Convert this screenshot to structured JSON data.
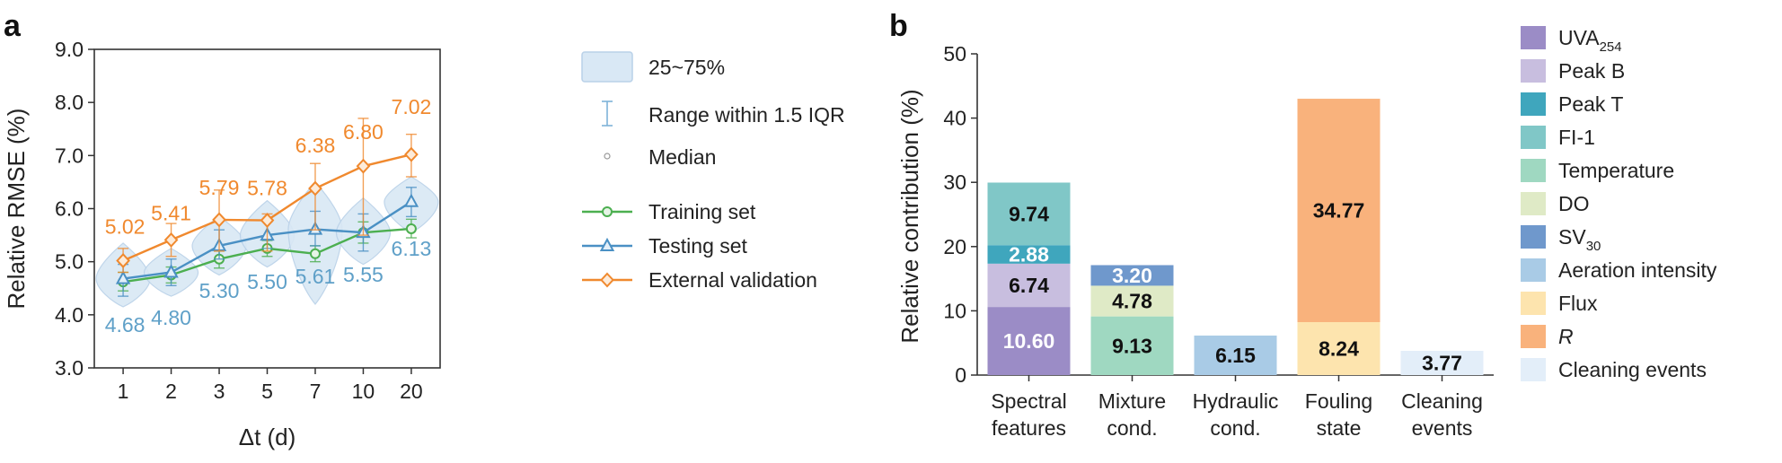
{
  "colors": {
    "training": "#4caf50",
    "testing": "#4a90c4",
    "external": "#f0892e",
    "violin_fill": "#d9e8f5",
    "violin_stroke": "#b9d1e8",
    "test_label": "#5fa0c8",
    "axis": "#333333"
  },
  "chart_data": [
    {
      "panel": "a",
      "type": "line",
      "xlabel": "Δt (d)",
      "ylabel": "Relative RMSE (%)",
      "categories": [
        "1",
        "2",
        "3",
        "5",
        "7",
        "10",
        "20"
      ],
      "ylim": [
        3.0,
        9.0
      ],
      "yticks": [
        "3.0",
        "4.0",
        "5.0",
        "6.0",
        "7.0",
        "8.0",
        "9.0"
      ],
      "grid": false,
      "series": [
        {
          "name": "Training set",
          "marker": "circle",
          "color": "#4caf50",
          "values": [
            4.62,
            4.75,
            5.05,
            5.25,
            5.15,
            5.55,
            5.62
          ],
          "err_low": [
            4.45,
            4.6,
            4.88,
            5.1,
            5.0,
            5.35,
            5.45
          ],
          "err_high": [
            4.8,
            4.9,
            5.2,
            5.4,
            5.3,
            5.75,
            5.8
          ]
        },
        {
          "name": "Testing set",
          "marker": "triangle",
          "color": "#4a90c4",
          "values": [
            4.68,
            4.8,
            5.3,
            5.5,
            5.61,
            5.55,
            6.13
          ],
          "err_low": [
            4.35,
            4.55,
            5.05,
            5.25,
            5.3,
            5.2,
            5.85
          ],
          "err_high": [
            4.95,
            5.05,
            5.6,
            5.75,
            5.95,
            5.9,
            6.4
          ]
        },
        {
          "name": "External validation",
          "marker": "diamond",
          "color": "#f0892e",
          "values": [
            5.02,
            5.41,
            5.79,
            5.78,
            6.38,
            6.8,
            7.02
          ],
          "err_low": [
            4.8,
            5.1,
            5.2,
            5.2,
            5.6,
            5.5,
            6.6
          ],
          "err_high": [
            5.25,
            5.72,
            6.35,
            5.9,
            6.85,
            7.7,
            7.4
          ]
        }
      ],
      "labels_external": [
        "5.02",
        "5.41",
        "5.79",
        "5.78",
        "6.38",
        "6.80",
        "7.02"
      ],
      "labels_testing": [
        "4.68",
        "4.80",
        "5.30",
        "5.50",
        "5.61",
        "5.55",
        "6.13"
      ],
      "violins": [
        {
          "min": 4.15,
          "max": 5.35,
          "center": 4.68
        },
        {
          "min": 4.35,
          "max": 5.25,
          "center": 4.8
        },
        {
          "min": 4.75,
          "max": 5.85,
          "center": 5.3
        },
        {
          "min": 4.9,
          "max": 6.15,
          "center": 5.5
        },
        {
          "min": 4.2,
          "max": 6.5,
          "center": 5.61
        },
        {
          "min": 4.95,
          "max": 6.2,
          "center": 5.55
        },
        {
          "min": 5.55,
          "max": 6.6,
          "center": 6.13
        }
      ],
      "legend": {
        "violin": "25~75%",
        "range": "Range within 1.5 IQR",
        "median": "Median",
        "training": "Training set",
        "testing": "Testing set",
        "external": "External validation"
      }
    },
    {
      "panel": "b",
      "type": "bar",
      "stacked": true,
      "ylabel": "Relative contribution (%)",
      "ylim": [
        0,
        50
      ],
      "yticks": [
        "0",
        "10",
        "20",
        "30",
        "40",
        "50"
      ],
      "categories": [
        [
          "Spectral",
          "features"
        ],
        [
          "Mixture",
          "cond."
        ],
        [
          "Hydraulic",
          "cond."
        ],
        [
          "Fouling",
          "state"
        ],
        [
          "Cleaning",
          "events"
        ]
      ],
      "series": [
        {
          "name": "UVA",
          "sub": "254",
          "italic": false,
          "color": "#9b8cc6",
          "values": [
            10.6,
            0,
            0,
            0,
            0
          ],
          "labels": [
            "10.60",
            "",
            "",
            "",
            ""
          ],
          "label_color": [
            "#ffffff",
            "",
            "",
            "",
            ""
          ]
        },
        {
          "name": "Peak B",
          "sub": "",
          "italic": false,
          "color": "#c8bedf",
          "values": [
            6.74,
            0,
            0,
            0,
            0
          ],
          "labels": [
            "6.74",
            "",
            "",
            "",
            ""
          ],
          "label_color": [
            "#111111",
            "",
            "",
            "",
            ""
          ]
        },
        {
          "name": "Peak T",
          "sub": "",
          "italic": false,
          "color": "#3fa6bd",
          "values": [
            2.88,
            0,
            0,
            0,
            0
          ],
          "labels": [
            "2.88",
            "",
            "",
            "",
            ""
          ],
          "label_color": [
            "#ffffff",
            "",
            "",
            "",
            ""
          ]
        },
        {
          "name": "FI-1",
          "sub": "",
          "italic": false,
          "color": "#80c7c7",
          "values": [
            9.74,
            0,
            0,
            0,
            0
          ],
          "labels": [
            "9.74",
            "",
            "",
            "",
            ""
          ],
          "label_color": [
            "#111111",
            "",
            "",
            "",
            ""
          ]
        },
        {
          "name": "Temperature",
          "sub": "",
          "italic": false,
          "color": "#9fd8c1",
          "values": [
            0,
            9.13,
            0,
            0,
            0
          ],
          "labels": [
            "",
            "9.13",
            "",
            "",
            ""
          ],
          "label_color": [
            "",
            "#111111",
            "",
            "",
            ""
          ]
        },
        {
          "name": "DO",
          "sub": "",
          "italic": false,
          "color": "#dfeac6",
          "values": [
            0,
            4.78,
            0,
            0,
            0
          ],
          "labels": [
            "",
            "4.78",
            "",
            "",
            ""
          ],
          "label_color": [
            "",
            "#111111",
            "",
            "",
            ""
          ]
        },
        {
          "name": "SV",
          "sub": "30",
          "italic": false,
          "color": "#6f98cc",
          "values": [
            0,
            3.2,
            0,
            0,
            0
          ],
          "labels": [
            "",
            "3.20",
            "",
            "",
            ""
          ],
          "label_color": [
            "",
            "#ffffff",
            "",
            "",
            ""
          ]
        },
        {
          "name": "Aeration intensity",
          "sub": "",
          "italic": false,
          "color": "#a9cbe6",
          "values": [
            0,
            0,
            6.15,
            0,
            0
          ],
          "labels": [
            "",
            "",
            "6.15",
            "",
            ""
          ],
          "label_color": [
            "",
            "",
            "#111111",
            "",
            ""
          ]
        },
        {
          "name": "Flux",
          "sub": "",
          "italic": false,
          "color": "#fde4ae",
          "values": [
            0,
            0,
            0,
            8.24,
            0
          ],
          "labels": [
            "",
            "",
            "",
            "8.24",
            ""
          ],
          "label_color": [
            "",
            "",
            "",
            "#111111",
            ""
          ]
        },
        {
          "name": "R",
          "sub": "",
          "italic": true,
          "color": "#f9b27c",
          "values": [
            0,
            0,
            0,
            34.77,
            0
          ],
          "labels": [
            "",
            "",
            "",
            "34.77",
            ""
          ],
          "label_color": [
            "",
            "",
            "",
            "#111111",
            ""
          ]
        },
        {
          "name": "Cleaning events",
          "sub": "",
          "italic": false,
          "color": "#e3eef9",
          "values": [
            0,
            0,
            0,
            0,
            3.77
          ],
          "labels": [
            "",
            "",
            "",
            "",
            "3.77"
          ],
          "label_color": [
            "",
            "",
            "",
            "",
            "#111111"
          ]
        }
      ]
    }
  ],
  "panels": {
    "a": "a",
    "b": "b"
  }
}
